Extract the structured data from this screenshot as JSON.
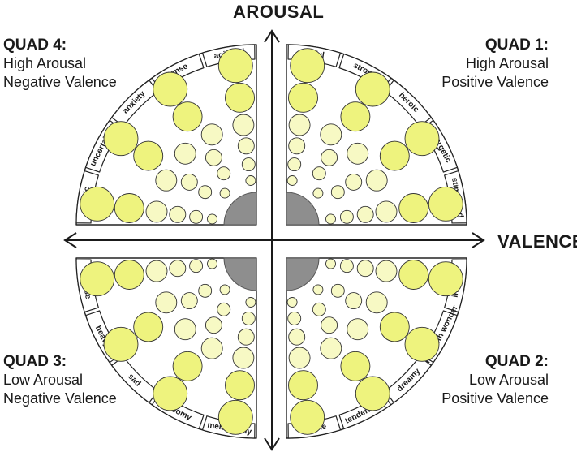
{
  "axes": {
    "vertical_label": "AROUSAL",
    "horizontal_label": "VALENCE"
  },
  "quadrants": {
    "q1": {
      "title": "QUAD 1:",
      "line1": "High Arousal",
      "line2": "Positive Valence",
      "emotions": [
        "stimulated",
        "energetic",
        "heroic",
        "strong",
        "joyful"
      ]
    },
    "q2": {
      "title": "QUAD 2:",
      "line1": "Low Arousal",
      "line2": "Positive Valence",
      "emotions": [
        "in awe",
        "filled with wonder",
        "dreamy",
        "tenderness",
        "serene"
      ]
    },
    "q3": {
      "title": "QUAD 3:",
      "line1": "Low Arousal",
      "line2": "Negative Valence",
      "emotions": [
        "unease",
        "heavy",
        "sad",
        "gloomy",
        "melancholy"
      ]
    },
    "q4": {
      "title": "QUAD 4:",
      "line1": "High Arousal",
      "line2": "Negative Valence",
      "emotions": [
        "tragic",
        "uncertainty",
        "anxiety",
        "tense",
        "agitated"
      ]
    }
  },
  "colors": {
    "circle_fill_strong": "#EEF37E",
    "circle_fill_light": "#F7F9C4",
    "circle_stroke": "#333333",
    "corner_wedge": "#8E8E8E",
    "outline": "#222222"
  }
}
